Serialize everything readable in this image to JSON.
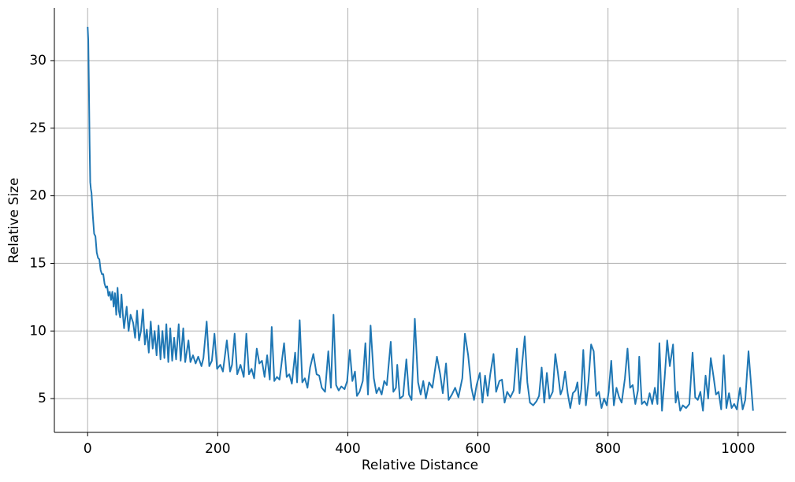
{
  "chart_data": {
    "type": "line",
    "xlabel": "Relative Distance",
    "ylabel": "Relative Size",
    "color": "#1f77b4",
    "grid": true,
    "xlim": [
      -51.15,
      1074.15
    ],
    "xticks": [
      0,
      200,
      400,
      600,
      800,
      1000
    ],
    "ylim": [
      2.5,
      33.9
    ],
    "yticks": [
      5,
      10,
      15,
      20,
      25,
      30
    ],
    "x": [
      0,
      1,
      2,
      3,
      4,
      5,
      6,
      8,
      10,
      12,
      14,
      16,
      18,
      20,
      22,
      24,
      26,
      28,
      30,
      32,
      34,
      36,
      38,
      40,
      42,
      44,
      46,
      48,
      50,
      52,
      54,
      56,
      60,
      63,
      66,
      70,
      73,
      76,
      79,
      82,
      85,
      88,
      91,
      94,
      97,
      100,
      103,
      106,
      109,
      112,
      115,
      118,
      121,
      124,
      127,
      130,
      133,
      136,
      140,
      143,
      147,
      150,
      155,
      158,
      162,
      166,
      170,
      175,
      178,
      183,
      187,
      191,
      195,
      199,
      204,
      208,
      214,
      219,
      222,
      226,
      230,
      235,
      240,
      244,
      248,
      252,
      256,
      260,
      264,
      268,
      272,
      276,
      280,
      283,
      287,
      291,
      295,
      302,
      306,
      310,
      314,
      319,
      322,
      326,
      330,
      334,
      338,
      342,
      347,
      352,
      356,
      360,
      365,
      370,
      374,
      378,
      382,
      386,
      390,
      395,
      399,
      403,
      407,
      411,
      414,
      418,
      423,
      427,
      431,
      435,
      440,
      444,
      448,
      452,
      456,
      460,
      466,
      470,
      474,
      476,
      480,
      485,
      490,
      494,
      498,
      503,
      508,
      512,
      516,
      520,
      525,
      530,
      537,
      542,
      546,
      551,
      555,
      560,
      565,
      570,
      576,
      580,
      585,
      590,
      594,
      598,
      603,
      607,
      611,
      615,
      619,
      624,
      628,
      633,
      637,
      641,
      645,
      650,
      655,
      660,
      664,
      668,
      672,
      676,
      680,
      685,
      690,
      694,
      698,
      702,
      706,
      710,
      715,
      719,
      723,
      727,
      730,
      734,
      738,
      742,
      746,
      750,
      753,
      756,
      759,
      762,
      766,
      770,
      774,
      778,
      782,
      786,
      790,
      794,
      798,
      801,
      805,
      809,
      813,
      817,
      821,
      826,
      830,
      834,
      838,
      842,
      846,
      848,
      852,
      856,
      860,
      864,
      868,
      872,
      876,
      879,
      883,
      887,
      891,
      895,
      900,
      904,
      907,
      911,
      915,
      920,
      925,
      930,
      934,
      938,
      942,
      946,
      950,
      954,
      958,
      962,
      966,
      970,
      974,
      978,
      982,
      986,
      990,
      994,
      998,
      1003,
      1007,
      1011,
      1016,
      1020,
      1023
    ],
    "values": [
      32.5,
      31.5,
      28,
      24,
      21,
      20.5,
      20.2,
      18.5,
      17.2,
      17,
      15.8,
      15.4,
      15.3,
      14.5,
      14.2,
      14.2,
      13.5,
      13.2,
      13.3,
      12.6,
      12.9,
      12.3,
      12.9,
      11.8,
      12.8,
      11.2,
      13.2,
      11.5,
      11,
      12.7,
      11.3,
      10.2,
      11.8,
      10,
      11.2,
      10.6,
      9.5,
      11.5,
      9.3,
      10,
      11.6,
      9,
      10.1,
      8.4,
      10.7,
      8.7,
      10,
      8.2,
      10.4,
      7.9,
      10,
      8,
      10.5,
      7.7,
      10.2,
      7.8,
      9.5,
      7.9,
      10.5,
      7.8,
      10.2,
      7.7,
      9.3,
      7.7,
      8.2,
      7.6,
      8.1,
      7.4,
      8,
      10.7,
      7.4,
      7.8,
      9.8,
      7.2,
      7.5,
      7,
      9.3,
      7,
      7.5,
      9.8,
      6.8,
      7.5,
      6.6,
      9.8,
      6.8,
      7.2,
      6.5,
      8.7,
      7.6,
      7.8,
      6.6,
      8.2,
      6.4,
      10.3,
      6.3,
      6.6,
      6.4,
      9.1,
      6.6,
      6.8,
      6.1,
      8.4,
      6.2,
      10.8,
      6.2,
      6.5,
      5.8,
      7.3,
      8.3,
      6.8,
      6.7,
      5.8,
      5.5,
      8.5,
      5.8,
      11.2,
      6,
      5.6,
      5.9,
      5.7,
      6.3,
      8.6,
      6.3,
      7,
      5.2,
      5.5,
      6.3,
      9.1,
      5.3,
      10.4,
      6.5,
      5.4,
      5.8,
      5.3,
      6.3,
      6,
      9.2,
      5.5,
      5.8,
      7.5,
      5,
      5.2,
      7.9,
      5.3,
      4.9,
      10.9,
      6.2,
      5.3,
      6.3,
      5,
      6.2,
      5.8,
      8.1,
      6.8,
      5.4,
      7.6,
      4.9,
      5.3,
      5.8,
      5.1,
      6.5,
      9.8,
      8.2,
      5.8,
      4.9,
      6,
      6.9,
      4.7,
      6.7,
      5.2,
      6.8,
      8.3,
      5.5,
      6.3,
      6.4,
      4.7,
      5.5,
      5.1,
      5.6,
      8.7,
      5.4,
      7.6,
      9.6,
      6.2,
      4.7,
      4.5,
      4.8,
      5.2,
      7.3,
      4.7,
      6.9,
      5,
      5.5,
      8.3,
      6.9,
      5.3,
      5.7,
      7,
      5.4,
      4.3,
      5.4,
      5.6,
      6.2,
      4.6,
      5.7,
      8.6,
      4.5,
      6.3,
      9,
      8.5,
      5.2,
      5.5,
      4.3,
      5,
      4.5,
      5.5,
      7.8,
      4.5,
      5.8,
      5.1,
      4.7,
      6.5,
      8.7,
      5.8,
      6,
      4.6,
      5.6,
      8.1,
      4.6,
      4.8,
      4.5,
      5.4,
      4.6,
      5.8,
      4.6,
      9.1,
      4.1,
      6.5,
      9.3,
      7.4,
      9,
      4.7,
      5.5,
      4.1,
      4.5,
      4.3,
      4.6,
      8.4,
      5.1,
      4.9,
      5.5,
      4.1,
      6.7,
      5,
      8,
      6.7,
      5.3,
      5.5,
      4.2,
      8.2,
      4.3,
      5.4,
      4.3,
      4.6,
      4.2,
      5.8,
      4.2,
      4.9,
      8.5,
      6,
      4.1
    ]
  }
}
